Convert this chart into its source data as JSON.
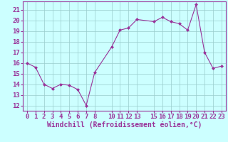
{
  "x": [
    0,
    1,
    2,
    3,
    4,
    5,
    6,
    7,
    8,
    10,
    11,
    12,
    13,
    15,
    16,
    17,
    18,
    19,
    20,
    21,
    22,
    23
  ],
  "y": [
    16.0,
    15.6,
    14.0,
    13.6,
    14.0,
    13.9,
    13.5,
    12.0,
    15.1,
    17.5,
    19.1,
    19.3,
    20.1,
    19.9,
    20.3,
    19.9,
    19.7,
    19.1,
    21.5,
    17.0,
    15.5,
    15.7
  ],
  "line_color": "#993399",
  "marker_color": "#993399",
  "bg_color": "#ccffff",
  "grid_color": "#99cccc",
  "xlabel": "Windchill (Refroidissement éolien,°C)",
  "xlim": [
    -0.5,
    23.5
  ],
  "ylim": [
    11.5,
    21.8
  ],
  "yticks": [
    12,
    13,
    14,
    15,
    16,
    17,
    18,
    19,
    20,
    21
  ],
  "xticks": [
    0,
    1,
    2,
    3,
    4,
    5,
    6,
    7,
    8,
    10,
    11,
    12,
    13,
    15,
    16,
    17,
    18,
    19,
    20,
    21,
    22,
    23
  ],
  "tick_label_color": "#993399",
  "xlabel_color": "#993399",
  "xlabel_fontsize": 7,
  "tick_fontsize": 6.5
}
